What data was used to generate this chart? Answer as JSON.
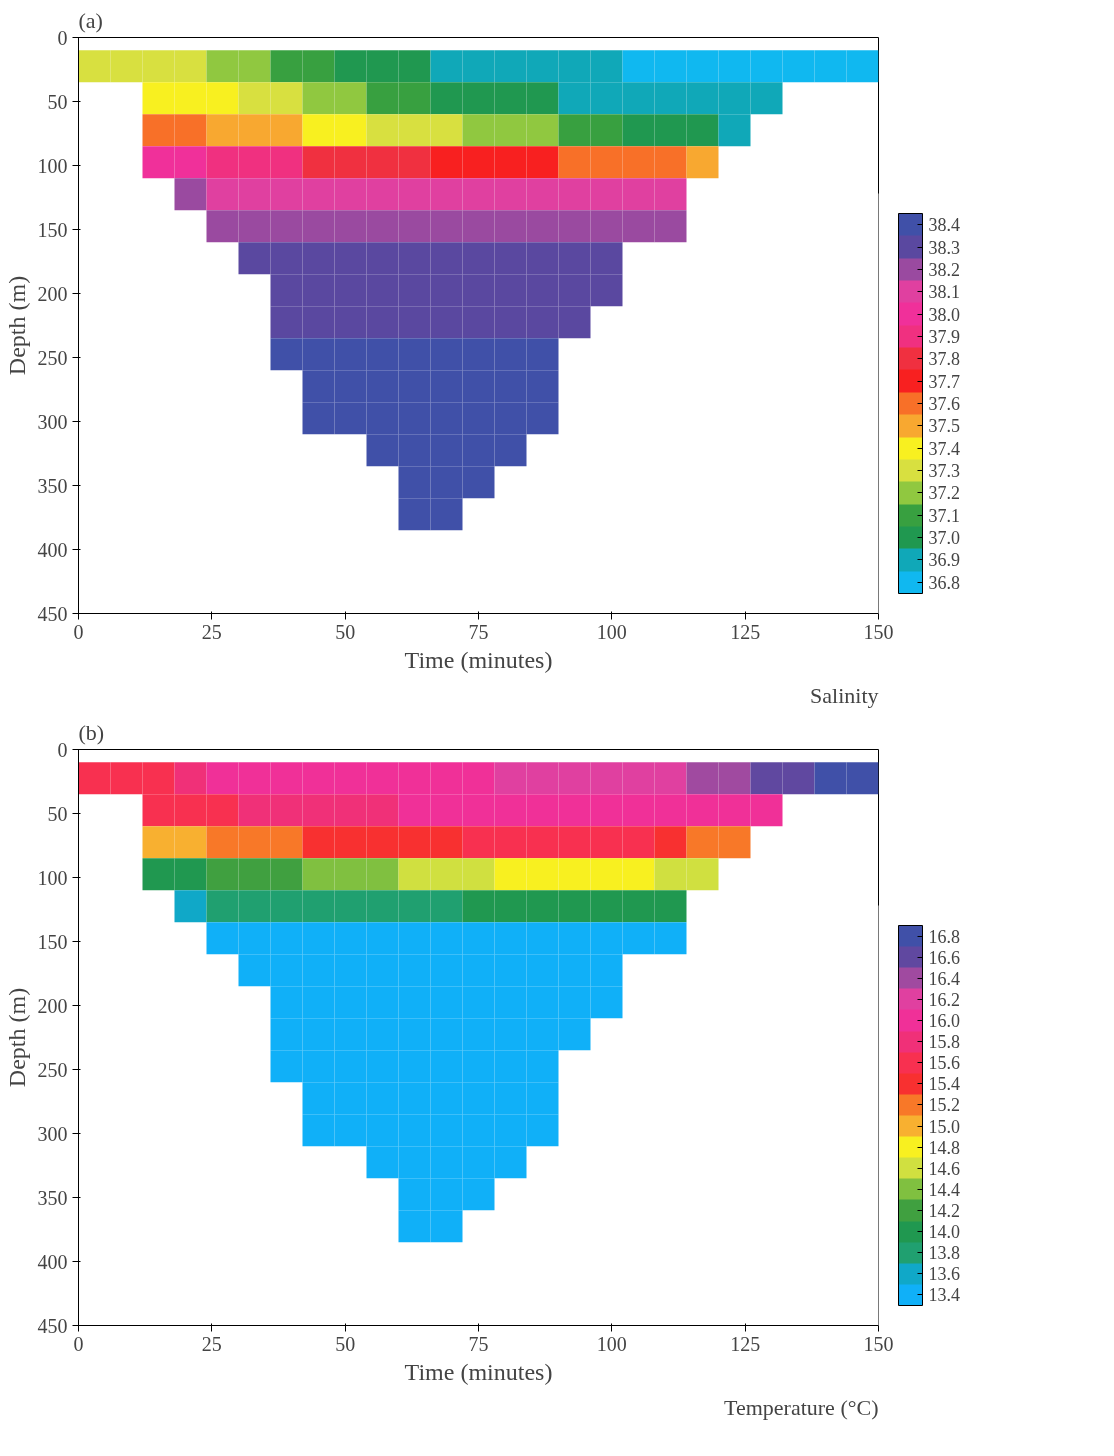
{
  "chart_data": [
    {
      "type": "scatter",
      "marker": "square",
      "title": "(a)",
      "xlabel": "Time (minutes)",
      "ylabel": "Depth (m)",
      "clabel": "Salinity",
      "xlim": [
        0,
        150
      ],
      "xticks": [
        0,
        25,
        50,
        75,
        100,
        125,
        150
      ],
      "ylim": [
        450,
        0
      ],
      "yticks": [
        0,
        50,
        100,
        150,
        200,
        250,
        300,
        350,
        400,
        450
      ],
      "clim": [
        36.75,
        38.45
      ],
      "cticks": [
        36.8,
        36.9,
        {
          "value": 37.0,
          "label": "37.0"
        },
        37.1,
        37.2,
        37.3,
        37.4,
        37.5,
        37.6,
        37.7,
        37.8,
        37.9,
        {
          "value": 38.0,
          "label": "38.0"
        },
        38.1,
        38.2,
        38.3,
        38.4
      ],
      "x": [
        3,
        9,
        15,
        21,
        27,
        33,
        39,
        45,
        51,
        57,
        63,
        69,
        75,
        81,
        87,
        93,
        99,
        105,
        111,
        117,
        123,
        129,
        135,
        141,
        147,
        15,
        21,
        27,
        33,
        39,
        45,
        51,
        57,
        63,
        69,
        75,
        81,
        87,
        93,
        99,
        105,
        111,
        117,
        123,
        129,
        15,
        21,
        27,
        33,
        39,
        45,
        51,
        57,
        63,
        69,
        75,
        81,
        87,
        93,
        99,
        105,
        111,
        117,
        123,
        15,
        21,
        27,
        33,
        39,
        45,
        51,
        57,
        63,
        69,
        75,
        81,
        87,
        93,
        99,
        105,
        111,
        117,
        21,
        27,
        33,
        39,
        45,
        51,
        57,
        63,
        69,
        75,
        81,
        87,
        93,
        99,
        105,
        111,
        27,
        33,
        39,
        45,
        51,
        57,
        63,
        69,
        75,
        81,
        87,
        93,
        99,
        105,
        111,
        33,
        39,
        45,
        51,
        57,
        63,
        69,
        75,
        81,
        87,
        93,
        99,
        39,
        45,
        51,
        57,
        63,
        69,
        75,
        81,
        87,
        93,
        99,
        39,
        45,
        51,
        57,
        63,
        69,
        75,
        81,
        87,
        93,
        39,
        45,
        51,
        57,
        63,
        69,
        75,
        81,
        87,
        45,
        51,
        57,
        63,
        69,
        75,
        81,
        87,
        45,
        51,
        57,
        63,
        69,
        75,
        81,
        87,
        57,
        63,
        69,
        75,
        81,
        63,
        69,
        75,
        63,
        69
      ],
      "values": [
        22.5,
        22.5,
        22.5,
        22.5,
        22.5,
        22.5,
        22.5,
        22.5,
        22.5,
        22.5,
        22.5,
        22.5,
        22.5,
        22.5,
        22.5,
        22.5,
        22.5,
        22.5,
        22.5,
        22.5,
        22.5,
        22.5,
        22.5,
        22.5,
        22.5,
        47.5,
        47.5,
        47.5,
        47.5,
        47.5,
        47.5,
        47.5,
        47.5,
        47.5,
        47.5,
        47.5,
        47.5,
        47.5,
        47.5,
        47.5,
        47.5,
        47.5,
        47.5,
        47.5,
        47.5,
        72.5,
        72.5,
        72.5,
        72.5,
        72.5,
        72.5,
        72.5,
        72.5,
        72.5,
        72.5,
        72.5,
        72.5,
        72.5,
        72.5,
        72.5,
        72.5,
        72.5,
        72.5,
        72.5,
        97.5,
        97.5,
        97.5,
        97.5,
        97.5,
        97.5,
        97.5,
        97.5,
        97.5,
        97.5,
        97.5,
        97.5,
        97.5,
        97.5,
        97.5,
        97.5,
        97.5,
        97.5,
        122.5,
        122.5,
        122.5,
        122.5,
        122.5,
        122.5,
        122.5,
        122.5,
        122.5,
        122.5,
        122.5,
        122.5,
        122.5,
        122.5,
        122.5,
        122.5,
        147.5,
        147.5,
        147.5,
        147.5,
        147.5,
        147.5,
        147.5,
        147.5,
        147.5,
        147.5,
        147.5,
        147.5,
        147.5,
        147.5,
        147.5,
        172.5,
        172.5,
        172.5,
        172.5,
        172.5,
        172.5,
        172.5,
        172.5,
        172.5,
        172.5,
        172.5,
        172.5,
        197.5,
        197.5,
        197.5,
        197.5,
        197.5,
        197.5,
        197.5,
        197.5,
        197.5,
        197.5,
        197.5,
        222.5,
        222.5,
        222.5,
        222.5,
        222.5,
        222.5,
        222.5,
        222.5,
        222.5,
        222.5,
        247.5,
        247.5,
        247.5,
        247.5,
        247.5,
        247.5,
        247.5,
        247.5,
        247.5,
        272.5,
        272.5,
        272.5,
        272.5,
        272.5,
        272.5,
        272.5,
        272.5,
        297.5,
        297.5,
        297.5,
        297.5,
        297.5,
        297.5,
        297.5,
        297.5,
        322.5,
        322.5,
        322.5,
        322.5,
        322.5,
        347.5,
        347.5,
        347.5,
        372.5,
        372.5
      ],
      "cvalues": [
        37.3,
        37.3,
        37.3,
        37.3,
        37.2,
        37.2,
        37.1,
        37.1,
        37.0,
        37.0,
        37.0,
        36.9,
        36.9,
        36.9,
        36.9,
        36.9,
        36.9,
        36.8,
        36.8,
        36.8,
        36.8,
        36.8,
        36.8,
        36.8,
        36.8,
        37.4,
        37.4,
        37.4,
        37.3,
        37.3,
        37.2,
        37.2,
        37.1,
        37.1,
        37.0,
        37.0,
        37.0,
        37.0,
        36.9,
        36.9,
        36.9,
        36.9,
        36.9,
        36.9,
        36.9,
        37.6,
        37.6,
        37.5,
        37.5,
        37.5,
        37.4,
        37.4,
        37.3,
        37.3,
        37.3,
        37.2,
        37.2,
        37.2,
        37.1,
        37.1,
        37.0,
        37.0,
        37.0,
        36.9,
        38.0,
        38.0,
        37.9,
        37.9,
        37.9,
        37.8,
        37.8,
        37.8,
        37.8,
        37.7,
        37.7,
        37.7,
        37.7,
        37.6,
        37.6,
        37.6,
        37.6,
        37.5,
        38.2,
        38.1,
        38.1,
        38.1,
        38.1,
        38.1,
        38.1,
        38.1,
        38.1,
        38.1,
        38.1,
        38.1,
        38.1,
        38.1,
        38.1,
        38.1,
        38.2,
        38.2,
        38.2,
        38.2,
        38.2,
        38.2,
        38.2,
        38.2,
        38.2,
        38.2,
        38.2,
        38.2,
        38.2,
        38.2,
        38.2,
        38.3,
        38.3,
        38.3,
        38.3,
        38.3,
        38.3,
        38.3,
        38.3,
        38.3,
        38.3,
        38.3,
        38.3,
        38.3,
        38.3,
        38.3,
        38.3,
        38.3,
        38.3,
        38.3,
        38.3,
        38.3,
        38.3,
        38.3,
        38.3,
        38.3,
        38.3,
        38.3,
        38.3,
        38.3,
        38.3,
        38.3,
        38.3,
        38.3,
        38.4,
        38.4,
        38.4,
        38.4,
        38.4,
        38.4,
        38.4,
        38.4,
        38.4,
        38.4,
        38.4,
        38.4,
        38.4,
        38.4,
        38.4,
        38.4,
        38.4,
        38.4,
        38.4,
        38.4,
        38.4,
        38.4,
        38.4,
        38.4,
        38.4,
        38.4,
        38.4,
        38.4,
        38.4,
        38.4,
        38.4,
        38.4,
        38.4,
        38.4,
        38.4
      ]
    },
    {
      "type": "scatter",
      "marker": "square",
      "title": "(b)",
      "xlabel": "Time (minutes)",
      "ylabel": "Depth (m)",
      "clabel": "Temperature (°C)",
      "xlim": [
        0,
        150
      ],
      "xticks": [
        0,
        25,
        50,
        75,
        100,
        125,
        150
      ],
      "ylim": [
        450,
        0
      ],
      "yticks": [
        0,
        50,
        100,
        150,
        200,
        250,
        300,
        350,
        400,
        450
      ],
      "clim": [
        13.3,
        16.9
      ],
      "cticks": [
        13.4,
        13.6,
        13.8,
        {
          "value": 14.0,
          "label": "14.0"
        },
        14.2,
        14.4,
        14.6,
        14.8,
        {
          "value": 15.0,
          "label": "15.0"
        },
        15.2,
        15.4,
        15.6,
        15.8,
        {
          "value": 16.0,
          "label": "16.0"
        },
        16.2,
        16.4,
        16.6,
        16.8
      ],
      "x": [
        3,
        9,
        15,
        21,
        27,
        33,
        39,
        45,
        51,
        57,
        63,
        69,
        75,
        81,
        87,
        93,
        99,
        105,
        111,
        117,
        123,
        129,
        135,
        141,
        147,
        15,
        21,
        27,
        33,
        39,
        45,
        51,
        57,
        63,
        69,
        75,
        81,
        87,
        93,
        99,
        105,
        111,
        117,
        123,
        129,
        15,
        21,
        27,
        33,
        39,
        45,
        51,
        57,
        63,
        69,
        75,
        81,
        87,
        93,
        99,
        105,
        111,
        117,
        123,
        15,
        21,
        27,
        33,
        39,
        45,
        51,
        57,
        63,
        69,
        75,
        81,
        87,
        93,
        99,
        105,
        111,
        117,
        21,
        27,
        33,
        39,
        45,
        51,
        57,
        63,
        69,
        75,
        81,
        87,
        93,
        99,
        105,
        111,
        27,
        33,
        39,
        45,
        51,
        57,
        63,
        69,
        75,
        81,
        87,
        93,
        99,
        105,
        111,
        33,
        39,
        45,
        51,
        57,
        63,
        69,
        75,
        81,
        87,
        93,
        99,
        39,
        45,
        51,
        57,
        63,
        69,
        75,
        81,
        87,
        93,
        99,
        39,
        45,
        51,
        57,
        63,
        69,
        75,
        81,
        87,
        93,
        39,
        45,
        51,
        57,
        63,
        69,
        75,
        81,
        87,
        45,
        51,
        57,
        63,
        69,
        75,
        81,
        87,
        45,
        51,
        57,
        63,
        69,
        75,
        81,
        87,
        57,
        63,
        69,
        75,
        81,
        63,
        69,
        75,
        63,
        69
      ],
      "values": [
        22.5,
        22.5,
        22.5,
        22.5,
        22.5,
        22.5,
        22.5,
        22.5,
        22.5,
        22.5,
        22.5,
        22.5,
        22.5,
        22.5,
        22.5,
        22.5,
        22.5,
        22.5,
        22.5,
        22.5,
        22.5,
        22.5,
        22.5,
        22.5,
        22.5,
        47.5,
        47.5,
        47.5,
        47.5,
        47.5,
        47.5,
        47.5,
        47.5,
        47.5,
        47.5,
        47.5,
        47.5,
        47.5,
        47.5,
        47.5,
        47.5,
        47.5,
        47.5,
        47.5,
        47.5,
        72.5,
        72.5,
        72.5,
        72.5,
        72.5,
        72.5,
        72.5,
        72.5,
        72.5,
        72.5,
        72.5,
        72.5,
        72.5,
        72.5,
        72.5,
        72.5,
        72.5,
        72.5,
        72.5,
        97.5,
        97.5,
        97.5,
        97.5,
        97.5,
        97.5,
        97.5,
        97.5,
        97.5,
        97.5,
        97.5,
        97.5,
        97.5,
        97.5,
        97.5,
        97.5,
        97.5,
        97.5,
        122.5,
        122.5,
        122.5,
        122.5,
        122.5,
        122.5,
        122.5,
        122.5,
        122.5,
        122.5,
        122.5,
        122.5,
        122.5,
        122.5,
        122.5,
        122.5,
        147.5,
        147.5,
        147.5,
        147.5,
        147.5,
        147.5,
        147.5,
        147.5,
        147.5,
        147.5,
        147.5,
        147.5,
        147.5,
        147.5,
        147.5,
        172.5,
        172.5,
        172.5,
        172.5,
        172.5,
        172.5,
        172.5,
        172.5,
        172.5,
        172.5,
        172.5,
        172.5,
        197.5,
        197.5,
        197.5,
        197.5,
        197.5,
        197.5,
        197.5,
        197.5,
        197.5,
        197.5,
        197.5,
        222.5,
        222.5,
        222.5,
        222.5,
        222.5,
        222.5,
        222.5,
        222.5,
        222.5,
        222.5,
        247.5,
        247.5,
        247.5,
        247.5,
        247.5,
        247.5,
        247.5,
        247.5,
        247.5,
        272.5,
        272.5,
        272.5,
        272.5,
        272.5,
        272.5,
        272.5,
        272.5,
        297.5,
        297.5,
        297.5,
        297.5,
        297.5,
        297.5,
        297.5,
        297.5,
        322.5,
        322.5,
        322.5,
        322.5,
        322.5,
        347.5,
        347.5,
        347.5,
        372.5,
        372.5
      ],
      "cvalues": [
        15.6,
        15.6,
        15.6,
        15.8,
        16.0,
        16.0,
        16.0,
        16.0,
        16.0,
        16.0,
        16.0,
        16.0,
        16.0,
        16.2,
        16.2,
        16.2,
        16.2,
        16.2,
        16.2,
        16.4,
        16.4,
        16.6,
        16.6,
        16.8,
        16.8,
        15.6,
        15.6,
        15.6,
        15.8,
        15.8,
        15.8,
        15.8,
        15.8,
        16.0,
        16.0,
        16.0,
        16.0,
        16.0,
        16.0,
        16.0,
        16.0,
        16.0,
        16.0,
        16.0,
        16.0,
        15.0,
        15.0,
        15.2,
        15.2,
        15.2,
        15.4,
        15.4,
        15.4,
        15.4,
        15.4,
        15.6,
        15.6,
        15.6,
        15.6,
        15.6,
        15.6,
        15.4,
        15.2,
        15.2,
        14.0,
        14.0,
        14.2,
        14.2,
        14.2,
        14.4,
        14.4,
        14.4,
        14.6,
        14.6,
        14.6,
        14.8,
        14.8,
        14.8,
        14.8,
        14.8,
        14.6,
        14.6,
        13.6,
        13.8,
        13.8,
        13.8,
        13.8,
        13.8,
        13.8,
        13.8,
        13.8,
        14.0,
        14.0,
        14.0,
        14.0,
        14.0,
        14.0,
        14.0,
        13.4,
        13.4,
        13.4,
        13.4,
        13.4,
        13.4,
        13.4,
        13.4,
        13.4,
        13.4,
        13.4,
        13.4,
        13.4,
        13.4,
        13.4,
        13.4,
        13.4,
        13.4,
        13.4,
        13.4,
        13.4,
        13.4,
        13.4,
        13.4,
        13.4,
        13.4,
        13.4,
        13.4,
        13.4,
        13.4,
        13.4,
        13.4,
        13.4,
        13.4,
        13.4,
        13.4,
        13.4,
        13.4,
        13.4,
        13.4,
        13.4,
        13.4,
        13.4,
        13.4,
        13.4,
        13.4,
        13.4,
        13.4,
        13.4,
        13.4,
        13.4,
        13.4,
        13.4,
        13.4,
        13.4,
        13.4,
        13.4,
        13.4,
        13.4,
        13.4,
        13.4,
        13.4,
        13.4,
        13.4,
        13.4,
        13.4,
        13.4,
        13.4,
        13.4,
        13.4,
        13.4,
        13.4,
        13.4,
        13.4,
        13.4,
        13.4,
        13.4,
        13.4,
        13.4,
        13.4,
        13.4,
        13.4,
        13.4
      ]
    }
  ]
}
